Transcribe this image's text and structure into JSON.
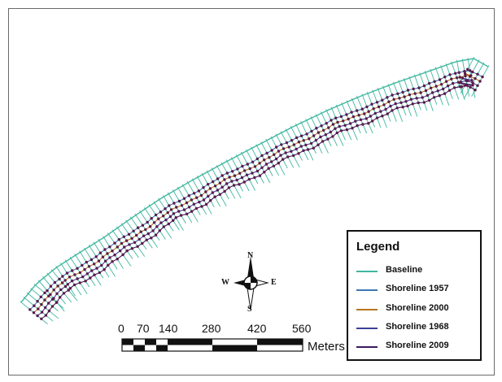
{
  "legend": {
    "title": "Legend",
    "items": [
      {
        "label": "Baseline",
        "color": "#3fb7a0"
      },
      {
        "label": "Shoreline 1957",
        "color": "#3d77b4"
      },
      {
        "label": "Shoreline 2000",
        "color": "#b5761e"
      },
      {
        "label": "Shoreline 1968",
        "color": "#3d3f9a"
      },
      {
        "label": "Shoreline 2009",
        "color": "#3b1a5e"
      }
    ]
  },
  "compass": {
    "north": "N",
    "south": "S",
    "east": "E",
    "west": "W"
  },
  "scale_bar": {
    "labels": [
      "0",
      "70",
      "140",
      "280",
      "420",
      "560"
    ],
    "unit": "Meters"
  },
  "colors": {
    "baseline": "#3fb7a0",
    "transect": "#3fb7a0",
    "intersection_point": "#5a1a4a",
    "frame": "#6a6a6a"
  }
}
